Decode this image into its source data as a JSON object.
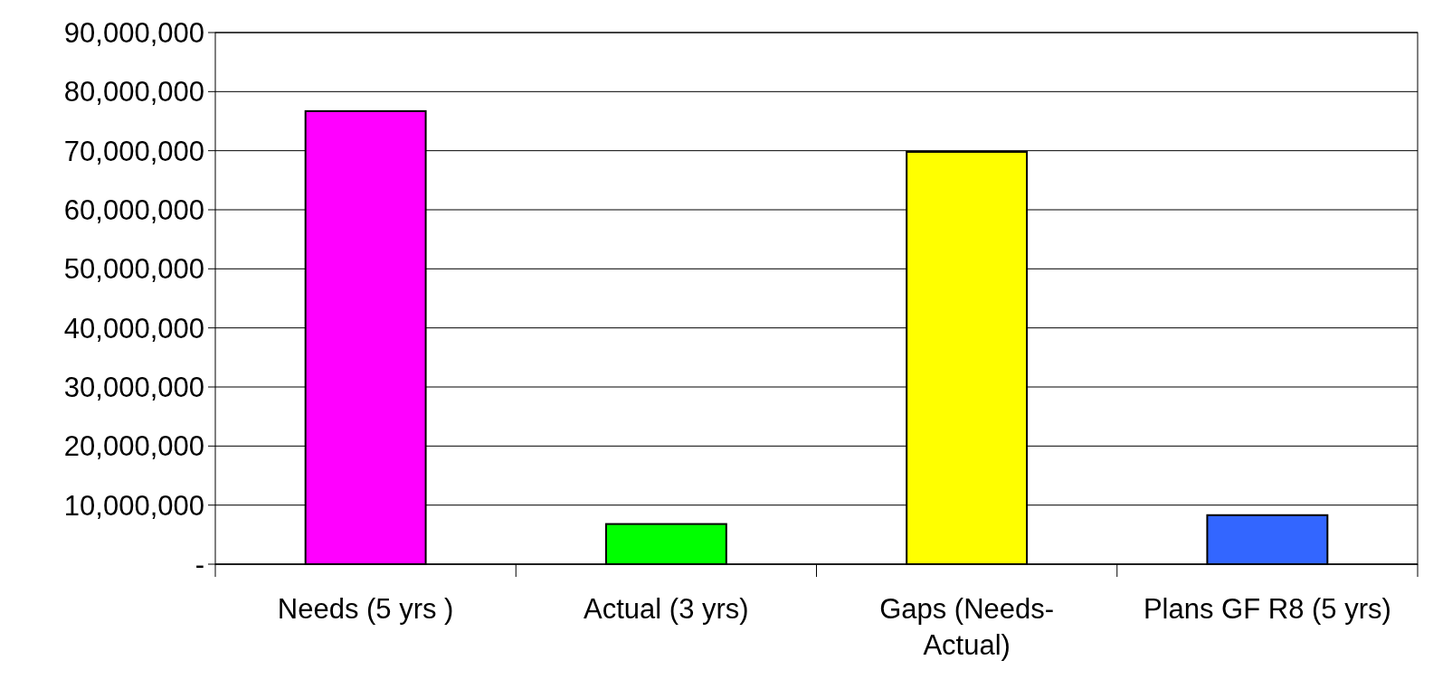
{
  "chart_data": {
    "type": "bar",
    "categories": [
      "Needs (5 yrs )",
      "Actual (3 yrs)",
      "Gaps (Needs-\nActual)",
      "Plans GF R8 (5 yrs)"
    ],
    "values": [
      76700000,
      6800000,
      69800000,
      8300000
    ],
    "colors": [
      "#ff00ff",
      "#00ff00",
      "#ffff00",
      "#3366ff"
    ],
    "ylim": [
      0,
      90000000
    ],
    "yticks": [
      {
        "value": 0,
        "label": "-"
      },
      {
        "value": 10000000,
        "label": "10,000,000"
      },
      {
        "value": 20000000,
        "label": "20,000,000"
      },
      {
        "value": 30000000,
        "label": "30,000,000"
      },
      {
        "value": 40000000,
        "label": "40,000,000"
      },
      {
        "value": 50000000,
        "label": "50,000,000"
      },
      {
        "value": 60000000,
        "label": "60,000,000"
      },
      {
        "value": 70000000,
        "label": "70,000,000"
      },
      {
        "value": 80000000,
        "label": "80,000,000"
      },
      {
        "value": 90000000,
        "label": "90,000,000"
      }
    ],
    "grid": "y"
  }
}
